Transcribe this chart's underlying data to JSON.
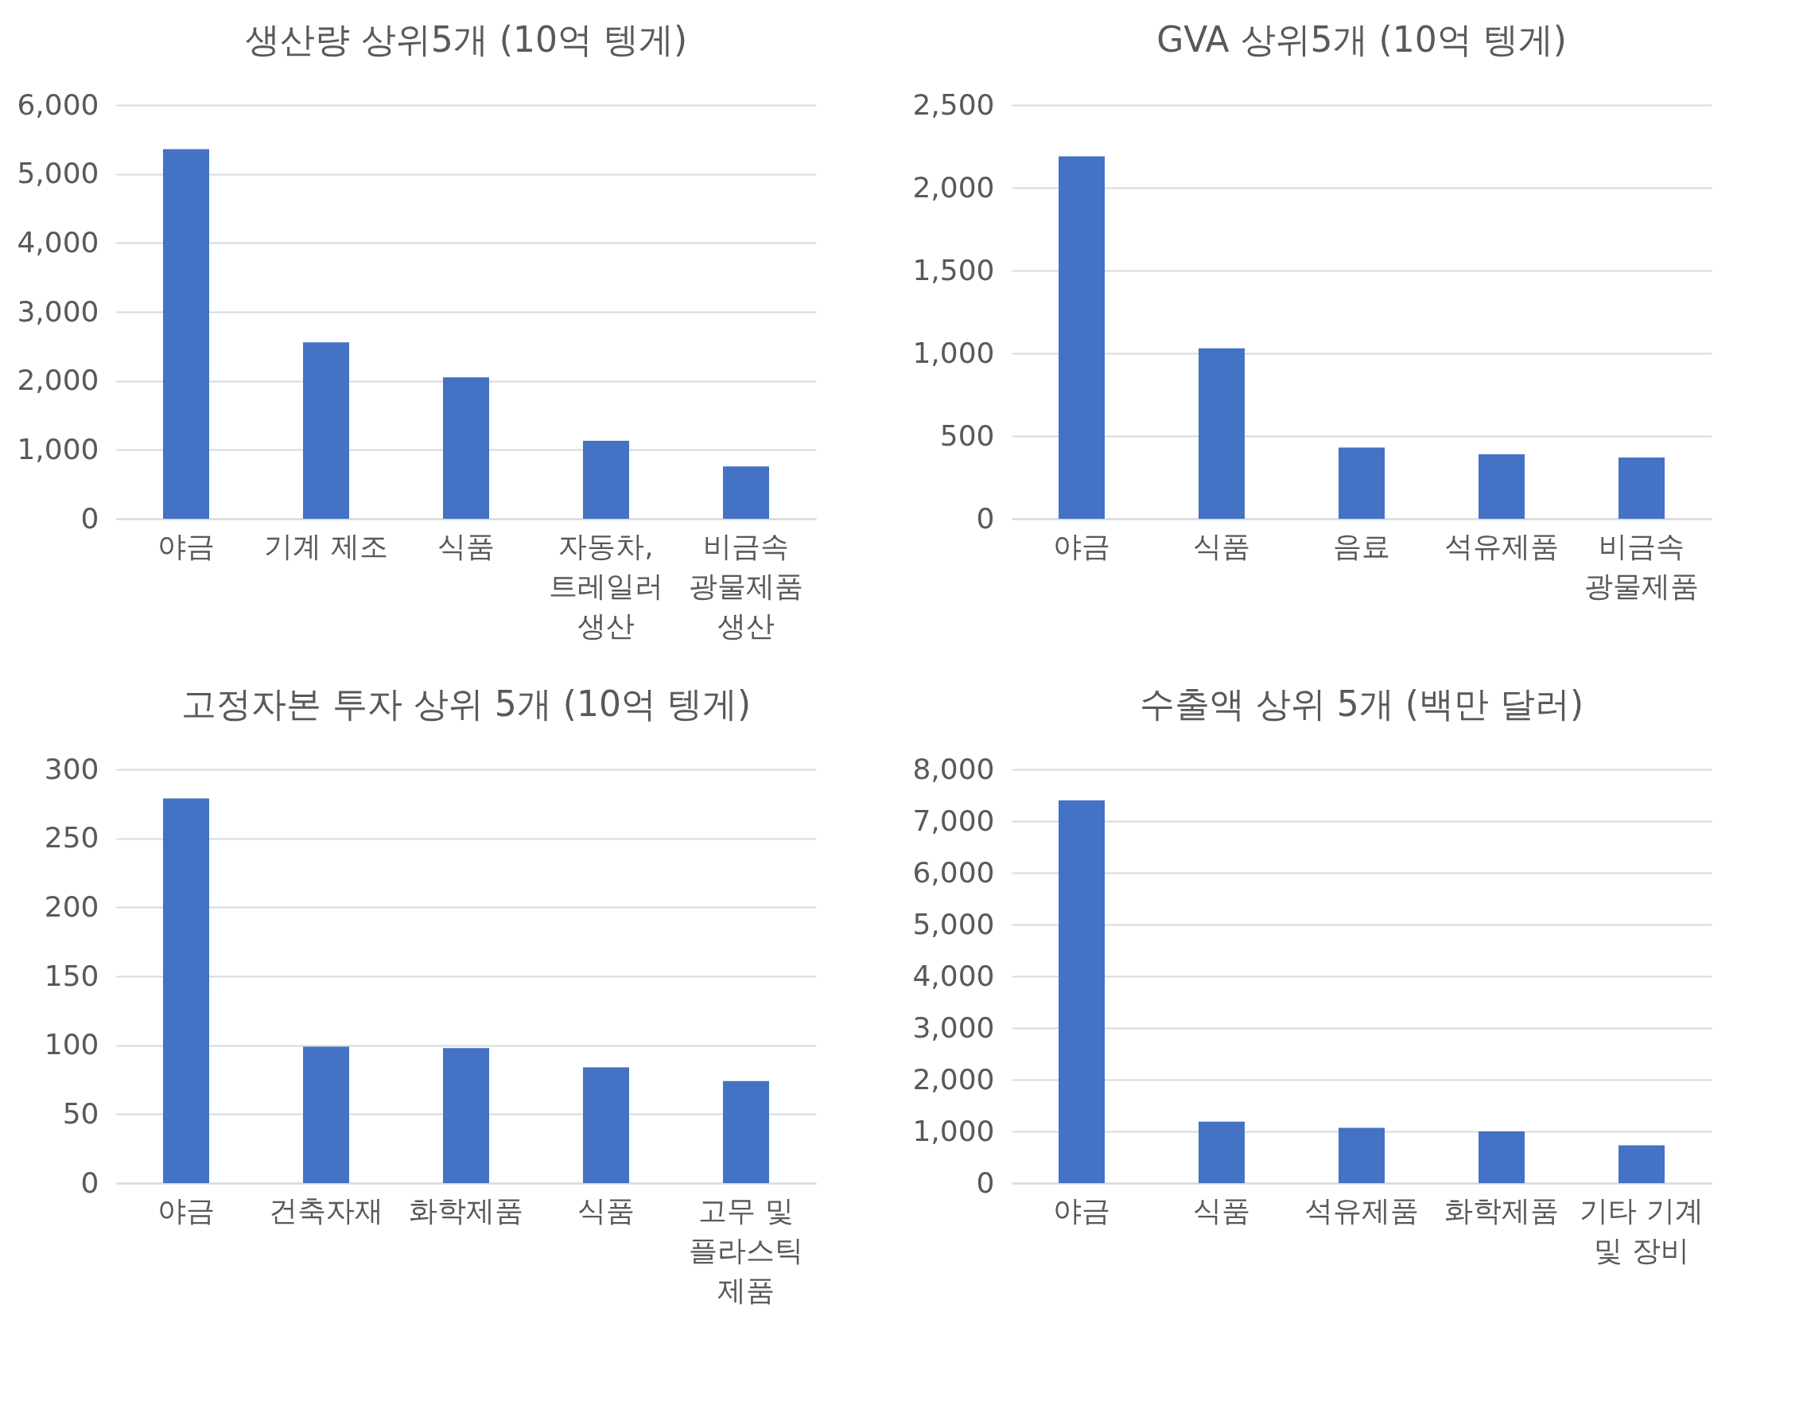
{
  "chart_data": [
    {
      "type": "bar",
      "title": "생산량 상위5개 (10억 텡게)",
      "categories": [
        "야금",
        "기계 제조",
        "식품",
        "자동차, 트레일러 생산",
        "비금속 광물제품 생산"
      ],
      "values": [
        5360,
        2560,
        2050,
        1130,
        760
      ],
      "color": "#4472c4",
      "ylim": [
        0,
        6000
      ],
      "yticks": [
        {
          "value": 0,
          "label": "0"
        },
        {
          "value": 1000,
          "label": "1,000"
        },
        {
          "value": 2000,
          "label": "2,000"
        },
        {
          "value": 3000,
          "label": "3,000"
        },
        {
          "value": 4000,
          "label": "4,000"
        },
        {
          "value": 5000,
          "label": "5,000"
        },
        {
          "value": 6000,
          "label": "6,000"
        }
      ],
      "grid": "y"
    },
    {
      "type": "bar",
      "title": "GVA 상위5개 (10억 텡게)",
      "categories": [
        "야금",
        "식품",
        "음료",
        "석유제품",
        "비금속 광물제품"
      ],
      "values": [
        2190,
        1030,
        430,
        390,
        370
      ],
      "color": "#4472c4",
      "ylim": [
        0,
        2500
      ],
      "yticks": [
        {
          "value": 0,
          "label": "0"
        },
        {
          "value": 500,
          "label": "500"
        },
        {
          "value": 1000,
          "label": "1,000"
        },
        {
          "value": 1500,
          "label": "1,500"
        },
        {
          "value": 2000,
          "label": "2,000"
        },
        {
          "value": 2500,
          "label": "2,500"
        }
      ],
      "grid": "y"
    },
    {
      "type": "bar",
      "title": "고정자본 투자 상위 5개 (10억 텡게)",
      "categories": [
        "야금",
        "건축자재",
        "화학제품",
        "식품",
        "고무 및 플라스틱 제품"
      ],
      "values": [
        279,
        99,
        98,
        84,
        74
      ],
      "color": "#4472c4",
      "ylim": [
        0,
        300
      ],
      "yticks": [
        0,
        50,
        100,
        150,
        200,
        250,
        300
      ],
      "grid": "y"
    },
    {
      "type": "bar",
      "title": "수출액 상위 5개 (백만 달러)",
      "categories": [
        "야금",
        "식품",
        "석유제품",
        "화학제품",
        "기타 기계 및 장비"
      ],
      "values": [
        7400,
        1190,
        1070,
        1000,
        730
      ],
      "color": "#4472c4",
      "ylim": [
        0,
        8000
      ],
      "yticks": [
        {
          "value": 0,
          "label": "0"
        },
        {
          "value": 1000,
          "label": "1,000"
        },
        {
          "value": 2000,
          "label": "2,000"
        },
        {
          "value": 3000,
          "label": "3,000"
        },
        {
          "value": 4000,
          "label": "4,000"
        },
        {
          "value": 5000,
          "label": "5,000"
        },
        {
          "value": 6000,
          "label": "6,000"
        },
        {
          "value": 7000,
          "label": "7,000"
        },
        {
          "value": 8000,
          "label": "8,000"
        }
      ],
      "grid": "y"
    }
  ]
}
